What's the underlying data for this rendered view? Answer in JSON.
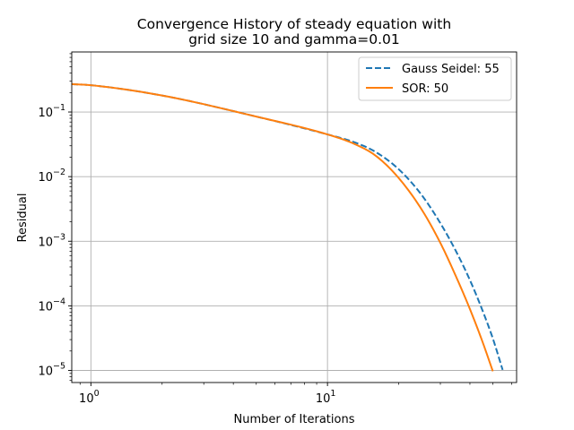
{
  "chart_data": {
    "type": "line",
    "title": "Convergence History of steady equation with",
    "subtitle": "grid size 10 and gamma=0.01",
    "xlabel": "Number of Iterations",
    "ylabel": "Residual",
    "xscale": "log",
    "yscale": "log",
    "xlim": [
      0.83,
      63
    ],
    "ylim": [
      6.5e-06,
      0.85
    ],
    "grid": true,
    "legend_position": "top-right",
    "x_ticks": [
      {
        "value": 1,
        "base": "10",
        "exp": "0"
      },
      {
        "value": 10,
        "base": "10",
        "exp": "1"
      }
    ],
    "y_ticks": [
      {
        "value": 1e-05,
        "base": "10",
        "exp": "−5"
      },
      {
        "value": 0.0001,
        "base": "10",
        "exp": "−4"
      },
      {
        "value": 0.001,
        "base": "10",
        "exp": "−3"
      },
      {
        "value": 0.01,
        "base": "10",
        "exp": "−2"
      },
      {
        "value": 0.1,
        "base": "10",
        "exp": "−1"
      }
    ],
    "series": [
      {
        "name": "Gauss Seidel: 55",
        "color": "#1f77b4",
        "style": "dashed",
        "x": [
          0.83,
          1,
          2,
          5,
          10,
          13,
          16,
          20,
          25,
          30,
          35,
          40,
          45,
          50,
          55
        ],
        "y": [
          0.27,
          0.26,
          0.18,
          0.085,
          0.045,
          0.034,
          0.024,
          0.013,
          0.0052,
          0.0019,
          0.00069,
          0.00025,
          8.85e-05,
          3.12e-05,
          1.02e-05
        ]
      },
      {
        "name": "SOR: 50",
        "color": "#ff7f0e",
        "style": "solid",
        "x": [
          0.83,
          1,
          2,
          5,
          10,
          13,
          16,
          20,
          25,
          30,
          35,
          40,
          45,
          50
        ],
        "y": [
          0.27,
          0.26,
          0.18,
          0.085,
          0.045,
          0.032,
          0.021,
          0.0095,
          0.0031,
          0.00094,
          0.00028,
          8.9e-05,
          2.91e-05,
          9.7e-06
        ]
      }
    ]
  }
}
